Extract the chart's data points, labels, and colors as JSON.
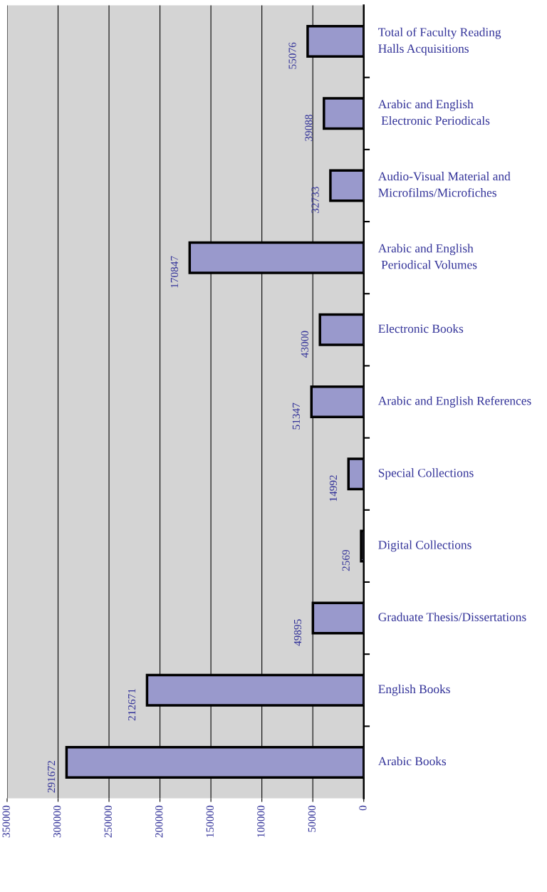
{
  "chart_data": {
    "type": "bar",
    "orientation": "horizontal",
    "categories": [
      "Total of Faculty Reading\nHalls Acquisitions",
      "Arabic and English\n Electronic Periodicals",
      "Audio-Visual Material and\nMicrofilms/Microfiches",
      "Arabic and English\n Periodical Volumes",
      "Electronic Books",
      "Arabic and English References",
      "Special Collections",
      "Digital Collections",
      "Graduate Thesis/Dissertations",
      "English Books",
      "Arabic Books"
    ],
    "values": [
      55076,
      39088,
      32733,
      170847,
      43000,
      51347,
      14992,
      2569,
      49895,
      212671,
      291672
    ],
    "color": "#9999cc",
    "xlim": [
      350000,
      0
    ],
    "xticks": [
      0,
      50000,
      100000,
      150000,
      200000,
      250000,
      300000,
      350000
    ],
    "grid": "x",
    "data_labels": true
  }
}
